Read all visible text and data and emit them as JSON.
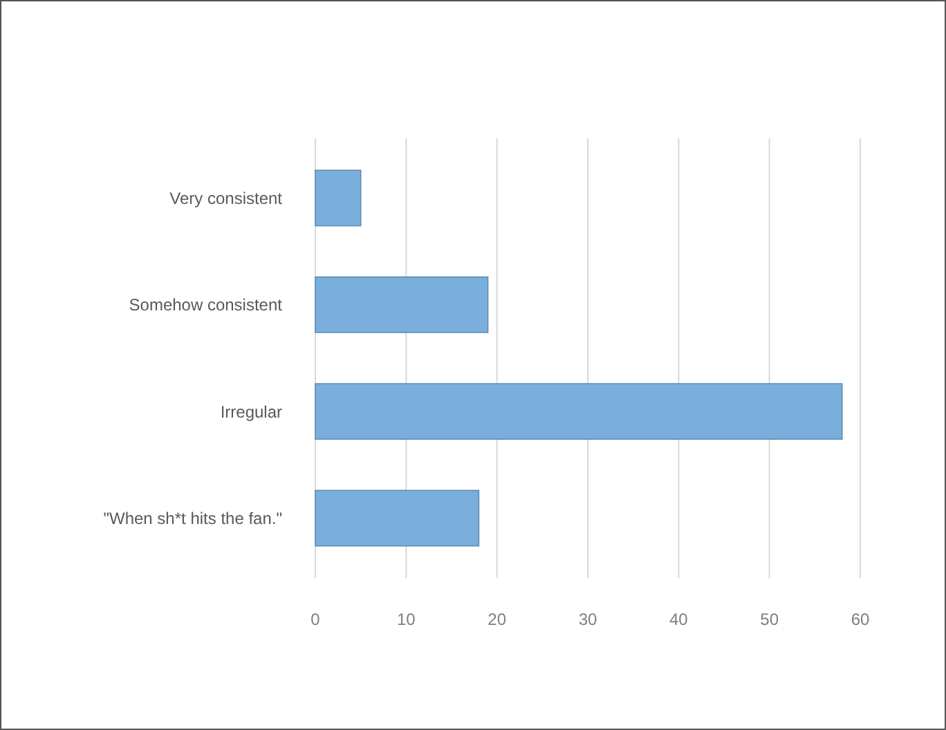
{
  "chart_data": {
    "type": "bar",
    "orientation": "horizontal",
    "categories": [
      "Very consistent",
      "Somehow consistent",
      "Irregular",
      "\"When sh*t hits the fan.\""
    ],
    "values": [
      5,
      19,
      58,
      18
    ],
    "color": "#7aafdc",
    "xlim": [
      0,
      60
    ],
    "xticks": [
      0,
      10,
      20,
      30,
      40,
      50,
      60
    ],
    "grid": "x"
  }
}
